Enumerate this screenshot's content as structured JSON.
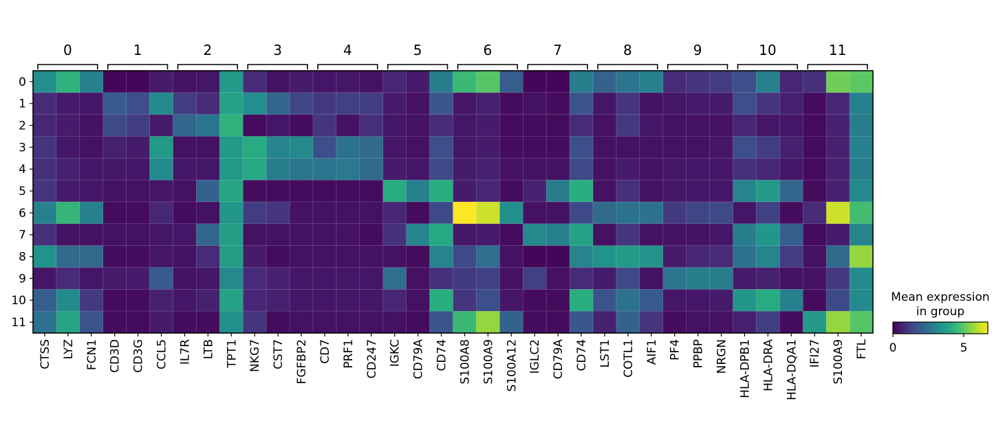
{
  "chart_data": {
    "type": "heatmap",
    "x_groups": [
      {
        "label": "0",
        "genes": [
          "CTSS",
          "LYZ",
          "FCN1"
        ]
      },
      {
        "label": "1",
        "genes": [
          "CD3D",
          "CD3G",
          "CCL5"
        ]
      },
      {
        "label": "2",
        "genes": [
          "IL7R",
          "LTB",
          "TPT1"
        ]
      },
      {
        "label": "3",
        "genes": [
          "NKG7",
          "CST7",
          "FGFBP2"
        ]
      },
      {
        "label": "4",
        "genes": [
          "CD7",
          "PRF1",
          "CD247"
        ]
      },
      {
        "label": "5",
        "genes": [
          "IGKC",
          "CD79A",
          "CD74"
        ]
      },
      {
        "label": "6",
        "genes": [
          "S100A8",
          "S100A9",
          "S100A12"
        ]
      },
      {
        "label": "7",
        "genes": [
          "IGLC2",
          "CD79A",
          "CD74"
        ]
      },
      {
        "label": "8",
        "genes": [
          "LST1",
          "COTL1",
          "AIF1"
        ]
      },
      {
        "label": "9",
        "genes": [
          "PF4",
          "PPBP",
          "NRGN"
        ]
      },
      {
        "label": "10",
        "genes": [
          "HLA-DPB1",
          "HLA-DRA",
          "HLA-DQA1"
        ]
      },
      {
        "label": "11",
        "genes": [
          "IFI27",
          "S100A9",
          "FTL"
        ]
      }
    ],
    "genes": [
      "CTSS",
      "LYZ",
      "FCN1",
      "CD3D",
      "CD3G",
      "CCL5",
      "IL7R",
      "LTB",
      "TPT1",
      "NKG7",
      "CST7",
      "FGFBP2",
      "CD7",
      "PRF1",
      "CD247",
      "IGKC",
      "CD79A",
      "CD74",
      "S100A8",
      "S100A9",
      "S100A12",
      "IGLC2",
      "CD79A",
      "CD74",
      "LST1",
      "COTL1",
      "AIF1",
      "PF4",
      "PPBP",
      "NRGN",
      "HLA-DPB1",
      "HLA-DRA",
      "HLA-DQA1",
      "IFI27",
      "S100A9",
      "FTL"
    ],
    "rows": [
      "0",
      "1",
      "2",
      "3",
      "4",
      "5",
      "6",
      "7",
      "8",
      "9",
      "10",
      "11"
    ],
    "values": [
      [
        3.3,
        4.3,
        2.9,
        0.1,
        0.1,
        0.5,
        0.3,
        0.4,
        3.6,
        0.8,
        0.3,
        0.5,
        0.4,
        0.4,
        0.3,
        0.7,
        0.5,
        2.8,
        4.5,
        4.9,
        2.0,
        0.1,
        0.1,
        2.8,
        2.1,
        2.6,
        2.9,
        0.8,
        1.0,
        1.2,
        1.6,
        2.9,
        0.7,
        0.9,
        5.2,
        5.0
      ],
      [
        0.8,
        0.5,
        0.4,
        1.9,
        1.6,
        3.2,
        1.2,
        0.8,
        3.8,
        3.3,
        2.2,
        1.4,
        1.1,
        1.3,
        1.2,
        0.5,
        0.3,
        1.8,
        0.4,
        0.6,
        0.2,
        0.3,
        0.2,
        1.7,
        0.4,
        1.0,
        0.3,
        0.4,
        0.5,
        0.5,
        1.6,
        1.0,
        0.6,
        0.2,
        0.7,
        2.9
      ],
      [
        0.7,
        0.5,
        0.3,
        1.5,
        1.2,
        0.5,
        2.2,
        2.6,
        4.3,
        0.2,
        0.4,
        0.2,
        1.0,
        0.3,
        0.9,
        0.4,
        0.3,
        0.8,
        0.4,
        0.5,
        0.2,
        0.2,
        0.2,
        0.8,
        0.3,
        1.1,
        0.4,
        0.3,
        0.3,
        0.3,
        0.7,
        0.4,
        0.4,
        0.2,
        0.6,
        2.8
      ],
      [
        1.0,
        0.4,
        0.3,
        0.6,
        0.5,
        3.6,
        0.3,
        0.3,
        3.6,
        4.1,
        3.0,
        3.1,
        1.6,
        2.5,
        2.3,
        0.4,
        0.3,
        1.6,
        0.4,
        0.5,
        0.2,
        0.2,
        0.2,
        1.6,
        0.3,
        0.3,
        0.3,
        0.3,
        0.3,
        0.4,
        1.6,
        1.2,
        0.6,
        0.2,
        0.6,
        2.9
      ],
      [
        0.9,
        0.6,
        0.4,
        0.4,
        0.4,
        3.2,
        0.4,
        0.4,
        3.6,
        4.0,
        2.8,
        2.6,
        2.6,
        2.7,
        2.3,
        0.5,
        0.4,
        1.5,
        0.5,
        0.6,
        0.3,
        0.3,
        0.3,
        1.5,
        0.3,
        0.5,
        0.3,
        0.4,
        0.4,
        0.4,
        0.9,
        0.7,
        0.4,
        0.2,
        0.6,
        2.8
      ],
      [
        1.0,
        0.5,
        0.4,
        0.3,
        0.3,
        0.4,
        0.3,
        2.1,
        3.9,
        0.2,
        0.2,
        0.2,
        0.2,
        0.2,
        0.2,
        4.1,
        2.9,
        4.2,
        0.5,
        0.7,
        0.2,
        0.6,
        2.8,
        4.2,
        0.3,
        0.9,
        0.3,
        0.4,
        0.4,
        0.4,
        3.0,
        3.6,
        2.2,
        0.2,
        0.6,
        3.1
      ],
      [
        2.9,
        4.4,
        2.9,
        0.2,
        0.2,
        0.7,
        0.2,
        0.3,
        3.5,
        1.2,
        1.0,
        0.3,
        0.3,
        0.3,
        0.3,
        0.7,
        0.2,
        1.5,
        6.7,
        6.2,
        3.3,
        0.3,
        0.3,
        1.5,
        2.3,
        2.5,
        2.5,
        1.1,
        1.4,
        1.5,
        0.4,
        1.3,
        0.2,
        0.8,
        6.2,
        4.6
      ],
      [
        0.9,
        0.3,
        0.3,
        0.3,
        0.3,
        0.4,
        0.4,
        2.2,
        3.7,
        0.3,
        0.3,
        0.3,
        0.3,
        0.3,
        0.2,
        0.9,
        3.0,
        4.0,
        0.4,
        0.5,
        0.2,
        3.1,
        2.9,
        3.8,
        0.3,
        1.0,
        0.3,
        0.3,
        0.3,
        0.4,
        2.8,
        3.5,
        2.0,
        0.2,
        0.5,
        3.0
      ],
      [
        3.4,
        2.3,
        2.3,
        0.2,
        0.2,
        0.4,
        0.3,
        0.8,
        3.7,
        0.5,
        0.2,
        0.3,
        0.3,
        0.3,
        0.3,
        0.3,
        0.2,
        3.0,
        1.5,
        2.4,
        0.3,
        0.1,
        0.1,
        3.0,
        3.4,
        3.6,
        3.4,
        0.5,
        0.7,
        0.8,
        2.5,
        3.0,
        1.2,
        0.3,
        2.3,
        5.6
      ],
      [
        0.4,
        0.8,
        0.4,
        0.5,
        0.5,
        1.9,
        0.3,
        0.4,
        3.1,
        0.8,
        0.6,
        0.4,
        0.4,
        0.4,
        0.4,
        2.4,
        0.3,
        0.9,
        1.1,
        1.3,
        0.3,
        1.3,
        0.3,
        0.8,
        0.5,
        1.5,
        0.3,
        2.6,
        2.8,
        2.8,
        0.5,
        0.6,
        0.3,
        0.3,
        1.1,
        3.2
      ],
      [
        2.0,
        3.2,
        1.1,
        0.2,
        0.2,
        0.6,
        0.4,
        0.6,
        3.8,
        0.7,
        0.6,
        0.4,
        0.4,
        0.4,
        0.4,
        0.7,
        0.3,
        4.2,
        1.0,
        1.6,
        0.4,
        0.2,
        0.2,
        4.2,
        1.7,
        2.5,
        1.9,
        0.4,
        0.4,
        0.5,
        3.5,
        4.1,
        2.9,
        0.2,
        1.5,
        3.2
      ],
      [
        2.5,
        3.9,
        1.7,
        0.2,
        0.2,
        0.5,
        0.2,
        0.2,
        3.3,
        1.0,
        0.2,
        0.3,
        0.3,
        0.3,
        0.3,
        0.3,
        0.2,
        1.8,
        4.5,
        5.6,
        2.1,
        0.2,
        0.2,
        1.8,
        0.6,
        2.1,
        1.0,
        0.2,
        0.3,
        0.3,
        0.6,
        1.2,
        0.2,
        3.6,
        5.6,
        4.9
      ]
    ],
    "colorbar": {
      "title_lines": [
        "Mean expression",
        "in group"
      ],
      "ticks": [
        "0",
        "5"
      ],
      "tick_values": [
        0,
        5
      ],
      "vmin": 0,
      "vmax": 6.7,
      "colormap": "viridis"
    }
  }
}
